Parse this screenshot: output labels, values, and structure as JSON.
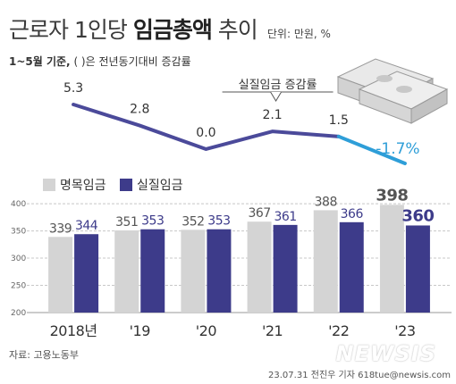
{
  "header": {
    "title_part1": "근로자 1인당 ",
    "title_part2": "임금총액",
    "title_part3": " 추이",
    "unit": "단위: 만원, %",
    "subtitle_bold": "1~5월 기준,",
    "subtitle_rest": " ( )은 전년동기대비 증감률"
  },
  "footer": {
    "source": "자료: 고용노동부",
    "credit": "23.07.31 전진우 기자 618tue@newsis.com",
    "watermark": "NEWSIS"
  },
  "colors": {
    "nominal": "#d4d4d4",
    "real": "#3d3b8a",
    "line": "#4b4a9a",
    "negative_segment": "#2e9ed8",
    "grid": "#c8c8c8"
  },
  "chart_data": [
    {
      "type": "bar",
      "categories": [
        "2018년",
        "'19",
        "'20",
        "'21",
        "'22",
        "'23"
      ],
      "series": [
        {
          "name": "명목임금",
          "values": [
            339,
            351,
            352,
            367,
            388,
            398
          ]
        },
        {
          "name": "실질임금",
          "values": [
            344,
            353,
            353,
            361,
            366,
            360
          ]
        }
      ],
      "y_ticks": [
        200,
        250,
        300,
        350,
        400
      ],
      "ylim": [
        200,
        410
      ],
      "grid": true,
      "legend": "top-left"
    },
    {
      "type": "line",
      "series_label": "실질임금 증감률",
      "categories": [
        "2018년",
        "'19",
        "'20",
        "'21",
        "'22",
        "'23"
      ],
      "values": [
        5.3,
        2.8,
        0.0,
        2.1,
        1.5,
        -1.7
      ],
      "value_labels": [
        "5.3",
        "2.8",
        "0.0",
        "2.1",
        "1.5",
        "-1.7%"
      ]
    }
  ]
}
